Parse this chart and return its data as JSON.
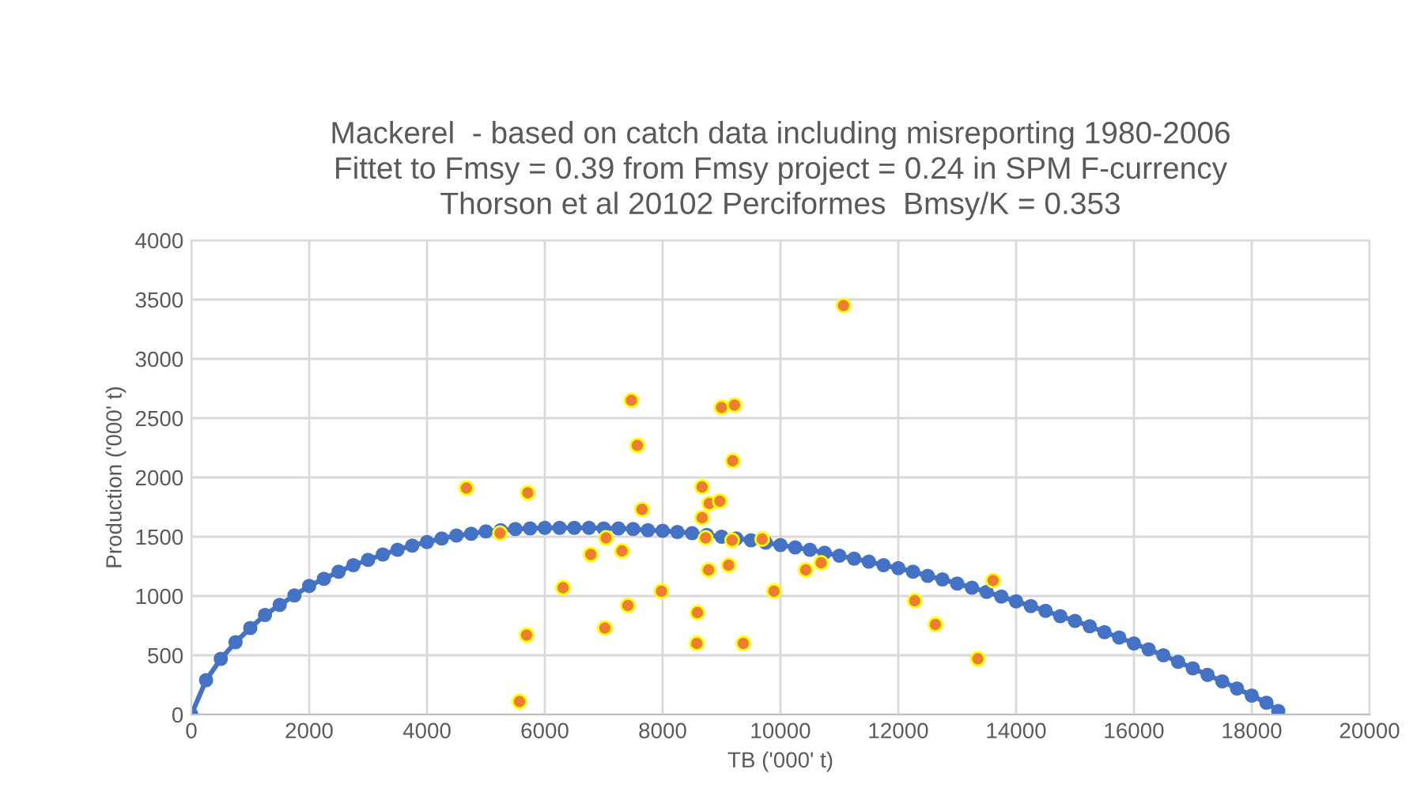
{
  "chart_data": {
    "type": "scatter",
    "title": "Mackerel  - based on catch data including misreporting 1980-2006\nFittet to Fmsy = 0.39 from Fmsy project = 0.24 in SPM F-currency\nThorson et al 20102 Perciformes  Bmsy/K = 0.353",
    "xlabel": "TB ('000' t)",
    "ylabel": "Production ('000' t)",
    "xlim": [
      0,
      20000
    ],
    "ylim": [
      0,
      4000
    ],
    "xticks": [
      0,
      2000,
      4000,
      6000,
      8000,
      10000,
      12000,
      14000,
      16000,
      18000,
      20000
    ],
    "yticks": [
      0,
      500,
      1000,
      1500,
      2000,
      2500,
      3000,
      3500,
      4000
    ],
    "grid": true,
    "legend": false,
    "marker": "circle",
    "series": [
      {
        "type": "line",
        "color": "#4472c4",
        "x": [
          0,
          250,
          500,
          750,
          1000,
          1250,
          1500,
          1750,
          2000,
          2250,
          2500,
          2750,
          3000,
          3250,
          3500,
          3750,
          4000,
          4250,
          4500,
          4750,
          5000,
          5250,
          5500,
          5750,
          6000,
          6250,
          6500,
          6750,
          7000,
          7250,
          7500,
          7750,
          8000,
          8250,
          8500,
          8750,
          9000,
          9250,
          9500,
          9750,
          10000,
          10250,
          10500,
          10750,
          11000,
          11250,
          11500,
          11750,
          12000,
          12250,
          12500,
          12750,
          13000,
          13250,
          13500,
          13750,
          14000,
          14250,
          14500,
          14750,
          15000,
          15250,
          15500,
          15750,
          16000,
          16250,
          16500,
          16750,
          17000,
          17250,
          17500,
          17750,
          18000,
          18250,
          18450
        ],
        "values": [
          0,
          290,
          470,
          610,
          730,
          840,
          925,
          1005,
          1085,
          1145,
          1205,
          1260,
          1305,
          1350,
          1390,
          1425,
          1455,
          1485,
          1510,
          1525,
          1545,
          1555,
          1565,
          1570,
          1575,
          1575,
          1575,
          1575,
          1570,
          1570,
          1565,
          1555,
          1550,
          1540,
          1530,
          1515,
          1500,
          1485,
          1470,
          1450,
          1430,
          1410,
          1390,
          1365,
          1340,
          1315,
          1290,
          1260,
          1235,
          1205,
          1170,
          1140,
          1105,
          1070,
          1035,
          995,
          955,
          915,
          875,
          830,
          790,
          745,
          695,
          650,
          600,
          550,
          500,
          445,
          390,
          335,
          280,
          220,
          160,
          100,
          30
        ]
      },
      {
        "color": "#ed7d31",
        "x": [
          4670,
          5240,
          5710,
          5690,
          5570,
          6310,
          6780,
          7040,
          7020,
          7310,
          7410,
          7470,
          7570,
          7650,
          7980,
          8590,
          8580,
          8670,
          8670,
          8730,
          8790,
          8970,
          8780,
          9000,
          9220,
          9190,
          9180,
          9120,
          9370,
          9690,
          9890,
          11070,
          10430,
          10690,
          12280,
          12630,
          13610,
          13350
        ],
        "values": [
          1910,
          1530,
          1870,
          670,
          110,
          1070,
          1350,
          1490,
          730,
          1380,
          920,
          2650,
          2270,
          1730,
          1040,
          860,
          600,
          1920,
          1660,
          1490,
          1780,
          1800,
          1220,
          2590,
          2610,
          2140,
          1470,
          1260,
          600,
          1480,
          1040,
          3450,
          1220,
          1280,
          960,
          760,
          1130,
          470
        ]
      }
    ]
  }
}
